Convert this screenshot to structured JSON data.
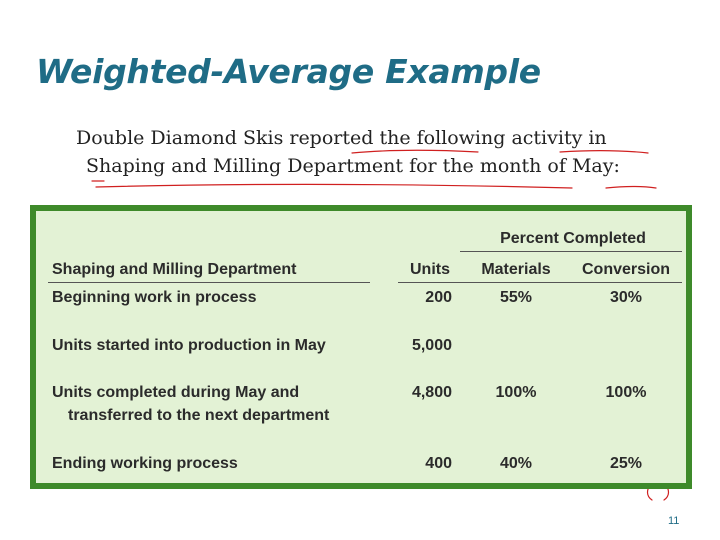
{
  "slide": {
    "title": "Weighted-Average Example",
    "intro_line1": "Double Diamond Skis reported the following activity in",
    "intro_line2": "Shaping and Milling Department for the month of May:",
    "page_number": "11"
  },
  "table": {
    "group_header": "Percent Completed",
    "headers": {
      "department": "Shaping and Milling Department",
      "units": "Units",
      "materials": "Materials",
      "conversion": "Conversion"
    },
    "rows": [
      {
        "label": "Beginning work in process",
        "label2": "",
        "units": "200",
        "materials": "55%",
        "conversion": "30%"
      },
      {
        "label": "Units started into production in May",
        "label2": "",
        "units": "5,000",
        "materials": "",
        "conversion": ""
      },
      {
        "label": "Units completed during May and",
        "label2": "transferred to the next department",
        "units": "4,800",
        "materials": "100%",
        "conversion": "100%"
      },
      {
        "label": "Ending working process",
        "label2": "",
        "units": "400",
        "materials": "40%",
        "conversion": "25%"
      }
    ]
  },
  "colors": {
    "title": "#1f6c86",
    "panel_border": "#3e8a2a",
    "panel_fill": "#e3f2d5",
    "annotation_ink": "#d02020"
  }
}
